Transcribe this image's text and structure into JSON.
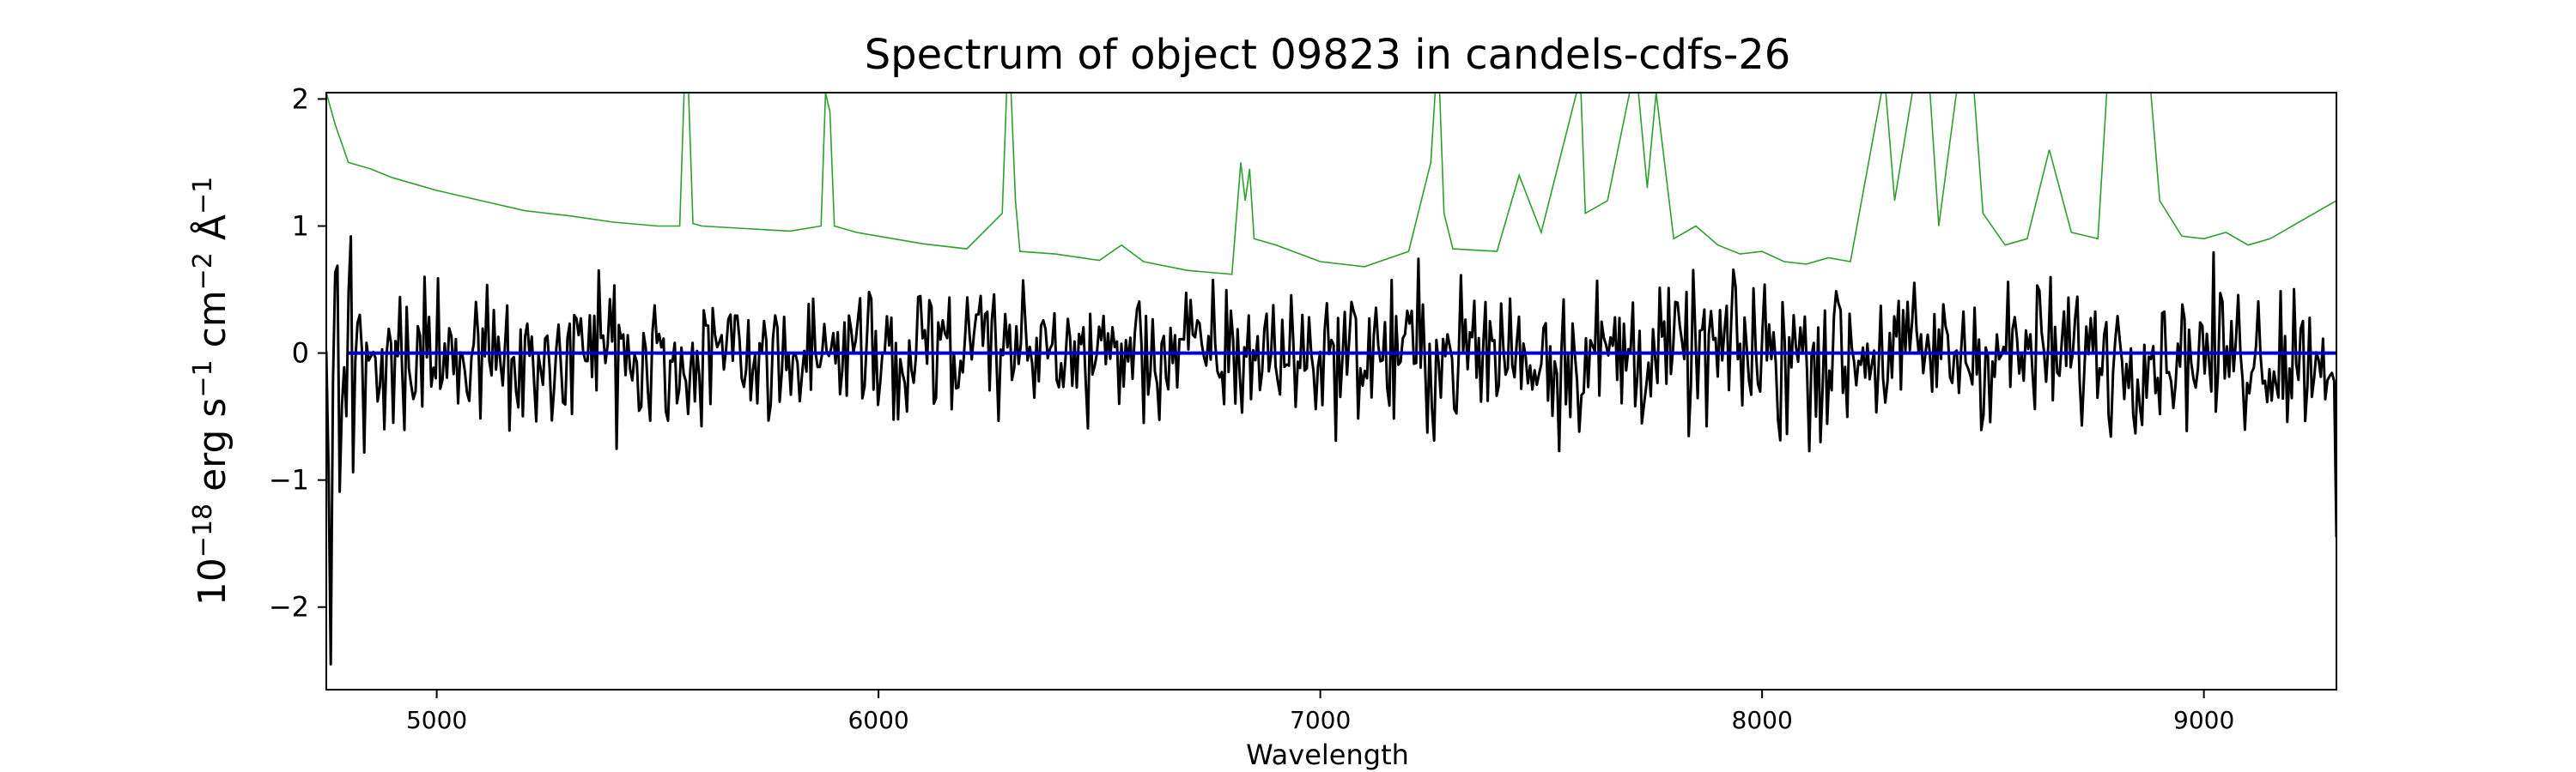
{
  "chart_data": {
    "type": "line",
    "title": "Spectrum of object 09823 in candels-cdfs-26",
    "xlabel": "Wavelength",
    "ylabel": {
      "parts": [
        {
          "text": "10"
        },
        {
          "text": "−18",
          "sup": true
        },
        {
          "text": " erg s"
        },
        {
          "text": "−1",
          "sup": true
        },
        {
          "text": " cm"
        },
        {
          "text": "−2",
          "sup": true
        },
        {
          "text": " Å"
        },
        {
          "text": "−1",
          "sup": true
        }
      ]
    },
    "xlim": [
      4750,
      9300
    ],
    "ylim": [
      -2.65,
      2.05
    ],
    "xticks": [
      5000,
      6000,
      7000,
      8000,
      9000
    ],
    "xtick_labels": [
      "5000",
      "6000",
      "7000",
      "8000",
      "9000"
    ],
    "yticks": [
      -2,
      -1,
      0,
      1,
      2
    ],
    "ytick_labels": [
      "−2",
      "−1",
      "0",
      "1",
      "2"
    ],
    "grid": false,
    "series": [
      {
        "role": "error",
        "color": "#2ca02c",
        "x": [
          4750,
          4770,
          4790,
          4800,
          4850,
          4900,
          5000,
          5100,
          5200,
          5300,
          5400,
          5500,
          5550,
          5560,
          5570,
          5580,
          5600,
          5700,
          5800,
          5870,
          5880,
          5890,
          5900,
          5950,
          6000,
          6100,
          6200,
          6280,
          6290,
          6300,
          6310,
          6320,
          6400,
          6500,
          6550,
          6600,
          6700,
          6800,
          6820,
          6830,
          6840,
          6850,
          6900,
          7000,
          7100,
          7200,
          7250,
          7260,
          7270,
          7280,
          7300,
          7400,
          7450,
          7500,
          7580,
          7590,
          7600,
          7650,
          7700,
          7720,
          7740,
          7760,
          7800,
          7850,
          7900,
          7950,
          8000,
          8050,
          8100,
          8150,
          8200,
          8270,
          8280,
          8300,
          8340,
          8380,
          8400,
          8440,
          8480,
          8500,
          8550,
          8600,
          8650,
          8700,
          8760,
          8780,
          8800,
          8840,
          8880,
          8900,
          8950,
          9000,
          9050,
          9100,
          9150,
          9200,
          9250,
          9300
        ],
        "y": [
          2.05,
          1.8,
          1.6,
          1.5,
          1.45,
          1.38,
          1.28,
          1.2,
          1.12,
          1.08,
          1.03,
          1.0,
          1.0,
          2.05,
          2.05,
          1.02,
          1.0,
          0.98,
          0.96,
          1.0,
          2.05,
          1.9,
          1.0,
          0.95,
          0.92,
          0.86,
          0.82,
          1.1,
          2.05,
          2.05,
          1.2,
          0.8,
          0.78,
          0.73,
          0.85,
          0.72,
          0.65,
          0.62,
          1.5,
          1.2,
          1.45,
          0.9,
          0.85,
          0.72,
          0.68,
          0.8,
          1.5,
          2.05,
          2.05,
          1.1,
          0.82,
          0.8,
          1.4,
          0.95,
          2.05,
          2.05,
          1.1,
          1.2,
          2.05,
          2.05,
          1.3,
          2.05,
          0.9,
          1.0,
          0.85,
          0.78,
          0.8,
          0.72,
          0.7,
          0.75,
          0.72,
          2.05,
          2.05,
          1.2,
          2.05,
          2.05,
          1.0,
          2.05,
          2.05,
          1.1,
          0.85,
          0.9,
          1.6,
          0.95,
          0.9,
          2.05,
          2.05,
          2.05,
          2.05,
          1.2,
          0.92,
          0.9,
          0.95,
          0.85,
          0.9,
          1.0,
          1.1,
          1.2
        ]
      },
      {
        "role": "flux",
        "color": "#000000",
        "seed": 9823,
        "x_range": [
          4750,
          9300
        ],
        "points": 900,
        "y_clip": [
          -2.45,
          1.75
        ]
      },
      {
        "role": "model",
        "color": "#0000cc",
        "x": [
          4800,
          9300
        ],
        "y": [
          0,
          0
        ]
      }
    ]
  }
}
